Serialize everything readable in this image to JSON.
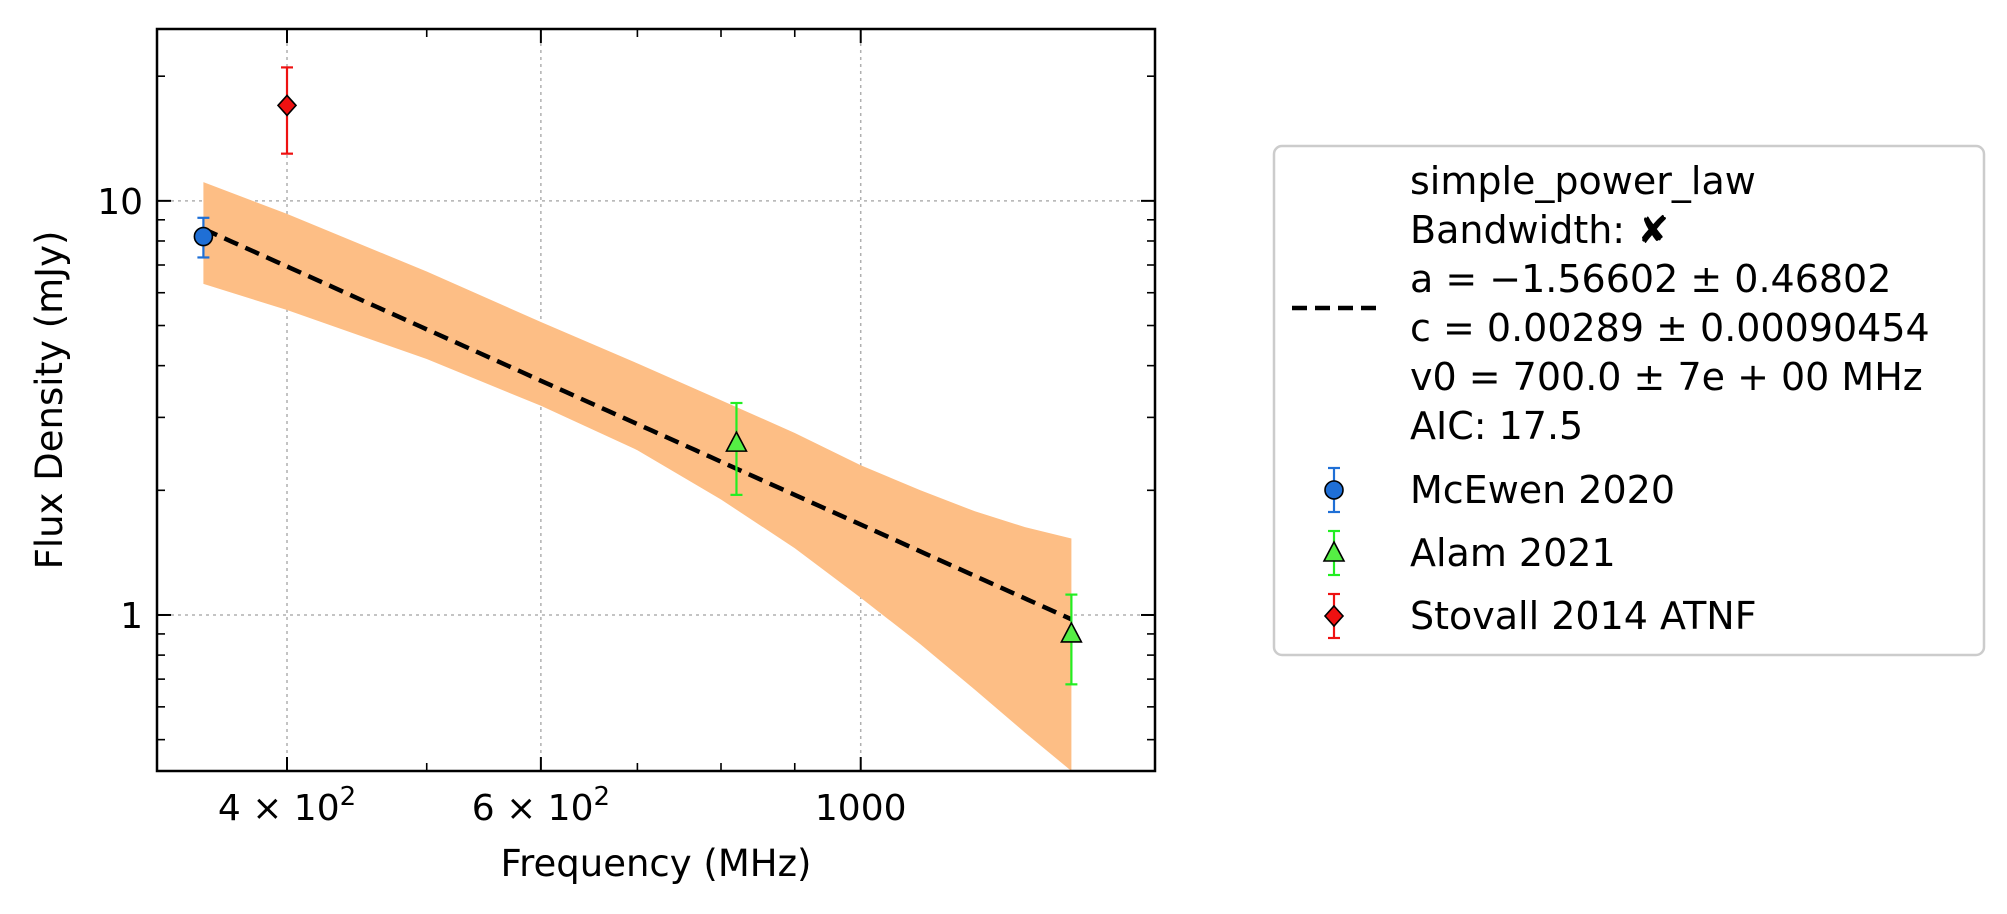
{
  "chart_data": {
    "type": "scatter",
    "xlabel": "Frequency (MHz)",
    "ylabel": "Flux Density (mJy)",
    "x_scale": "log",
    "y_scale": "log",
    "xlim": [
      325,
      1600
    ],
    "ylim": [
      0.42,
      26
    ],
    "grid": true,
    "legend_position": "right-outside",
    "x_ticks": [
      {
        "value": 400,
        "label_base": "4 × 10",
        "label_exp": "2"
      },
      {
        "value": 600,
        "label_base": "6 × 10",
        "label_exp": "2"
      },
      {
        "value": 1000,
        "label_base": "1000",
        "label_exp": ""
      }
    ],
    "y_ticks": [
      {
        "value": 1,
        "label": "1"
      },
      {
        "value": 10,
        "label": "10"
      }
    ],
    "fit": {
      "model": "simple_power_law",
      "bandwidth_label": "Bandwidth:",
      "bandwidth_mark": "✘",
      "a_text": "a = −1.56602 ± 0.46802",
      "c_text": "c = 0.00289 ± 0.00090454",
      "v0_text": "v0 = 700.0 ± 7e + 00 MHz",
      "aic_text": "AIC: 17.5",
      "a": -1.56602,
      "c": 0.00289,
      "v0": 700.0,
      "x_range": [
        350,
        1400
      ],
      "line_color": "#000000",
      "band_color": "#fdbe85",
      "band": [
        {
          "x": 350,
          "lo": 6.3,
          "hi": 11.1
        },
        {
          "x": 400,
          "lo": 5.45,
          "hi": 9.3
        },
        {
          "x": 500,
          "lo": 4.15,
          "hi": 6.75
        },
        {
          "x": 600,
          "lo": 3.2,
          "hi": 5.1
        },
        {
          "x": 700,
          "lo": 2.5,
          "hi": 4.05
        },
        {
          "x": 800,
          "lo": 1.9,
          "hi": 3.3
        },
        {
          "x": 900,
          "lo": 1.45,
          "hi": 2.75
        },
        {
          "x": 1000,
          "lo": 1.1,
          "hi": 2.3
        },
        {
          "x": 1100,
          "lo": 0.85,
          "hi": 2.0
        },
        {
          "x": 1200,
          "lo": 0.66,
          "hi": 1.78
        },
        {
          "x": 1300,
          "lo": 0.52,
          "hi": 1.63
        },
        {
          "x": 1400,
          "lo": 0.42,
          "hi": 1.53
        }
      ]
    },
    "series": [
      {
        "name": "McEwen 2020",
        "marker": "circle",
        "color": "#1f6fd6",
        "error_color": "#1f6fd6",
        "points": [
          {
            "x": 350,
            "y": 8.2,
            "err_lo": 0.9,
            "err_hi": 0.9
          }
        ]
      },
      {
        "name": "Alam 2021",
        "marker": "triangle",
        "color": "#55ee44",
        "error_color": "#22ee22",
        "points": [
          {
            "x": 820,
            "y": 2.6,
            "err_lo": 0.65,
            "err_hi": 0.65
          },
          {
            "x": 1400,
            "y": 0.9,
            "err_lo": 0.22,
            "err_hi": 0.22
          }
        ]
      },
      {
        "name": "Stovall 2014 ATNF",
        "marker": "diamond",
        "color": "#ee1111",
        "error_color": "#ee1111",
        "points": [
          {
            "x": 400,
            "y": 17.0,
            "err_lo": 4.0,
            "err_hi": 4.0
          }
        ]
      }
    ]
  }
}
